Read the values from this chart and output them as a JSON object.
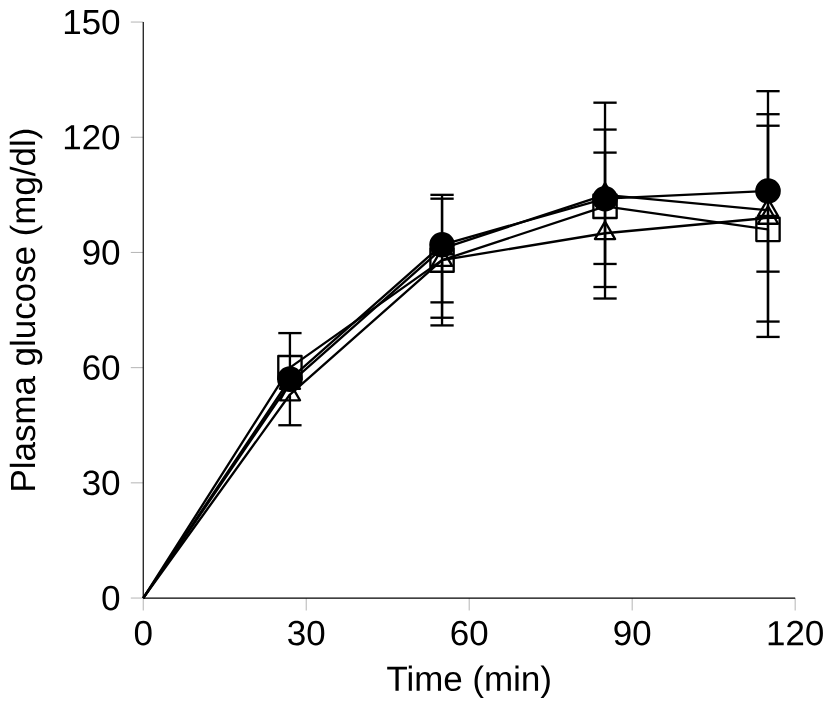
{
  "chart_data": {
    "type": "line",
    "xlabel": "Time (min)",
    "ylabel": "Plasma glucose (mg/dl)",
    "xlim": [
      0,
      120
    ],
    "ylim": [
      0,
      150
    ],
    "xticks": [
      0,
      30,
      60,
      90,
      120
    ],
    "yticks": [
      0,
      30,
      60,
      90,
      120,
      150
    ],
    "x": [
      0,
      27,
      55,
      85,
      115
    ],
    "series": [
      {
        "color": "#000000",
        "marker": "circle",
        "values": [
          0,
          57,
          92,
          104,
          106
        ],
        "errors": [
          null,
          null,
          [
            92,
            105
          ],
          [
            104,
            129
          ],
          [
            106,
            132
          ]
        ]
      },
      {
        "color": "#000000",
        "marker": "triangle",
        "values": [
          0,
          56,
          91,
          105,
          101
        ],
        "errors": [
          null,
          null,
          [
            77,
            104
          ],
          [
            87,
            122
          ],
          [
            85,
            126
          ]
        ]
      },
      {
        "color": "#000000",
        "marker": "triangle",
        "values": [
          0,
          53,
          88,
          95,
          99
        ],
        "errors": [
          null,
          [
            45,
            53
          ],
          [
            73,
            88
          ],
          [
            81,
            116
          ],
          [
            72,
            123
          ]
        ]
      },
      {
        "color": "#000000",
        "marker": "square",
        "values": [
          0,
          60,
          88,
          102,
          96
        ],
        "errors": [
          null,
          [
            60,
            69
          ],
          [
            71,
            88
          ],
          [
            78,
            102
          ],
          [
            68,
            96
          ]
        ]
      }
    ]
  }
}
